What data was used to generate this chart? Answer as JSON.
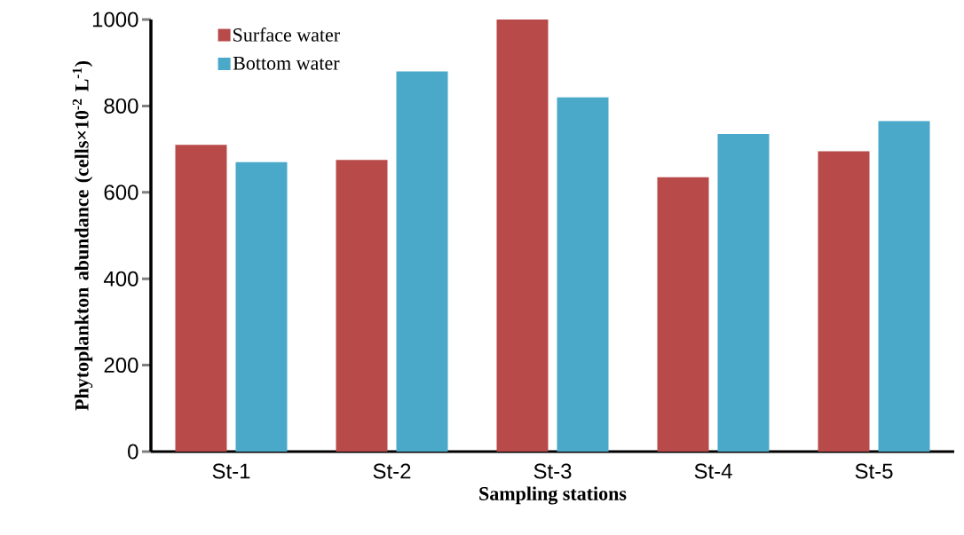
{
  "chart_data": {
    "type": "bar",
    "xlabel": "Sampling stations",
    "ylabel": "Phytoplankton abundance (cells×10$^{-2}$ L$^{-1}$)",
    "categories": [
      "St-1",
      "St-2",
      "St-3",
      "St-4",
      "St-5"
    ],
    "series": [
      {
        "name": "Surface water",
        "color": "#b84a4a",
        "values": [
          710,
          675,
          1000,
          635,
          695
        ]
      },
      {
        "name": "Bottom water",
        "color": "#4aa8c8",
        "values": [
          670,
          880,
          820,
          735,
          765
        ]
      }
    ],
    "ylim": [
      0,
      1000
    ],
    "yticks": [
      0,
      200,
      400,
      600,
      800,
      1000
    ],
    "grid": false,
    "legend": "top left"
  }
}
